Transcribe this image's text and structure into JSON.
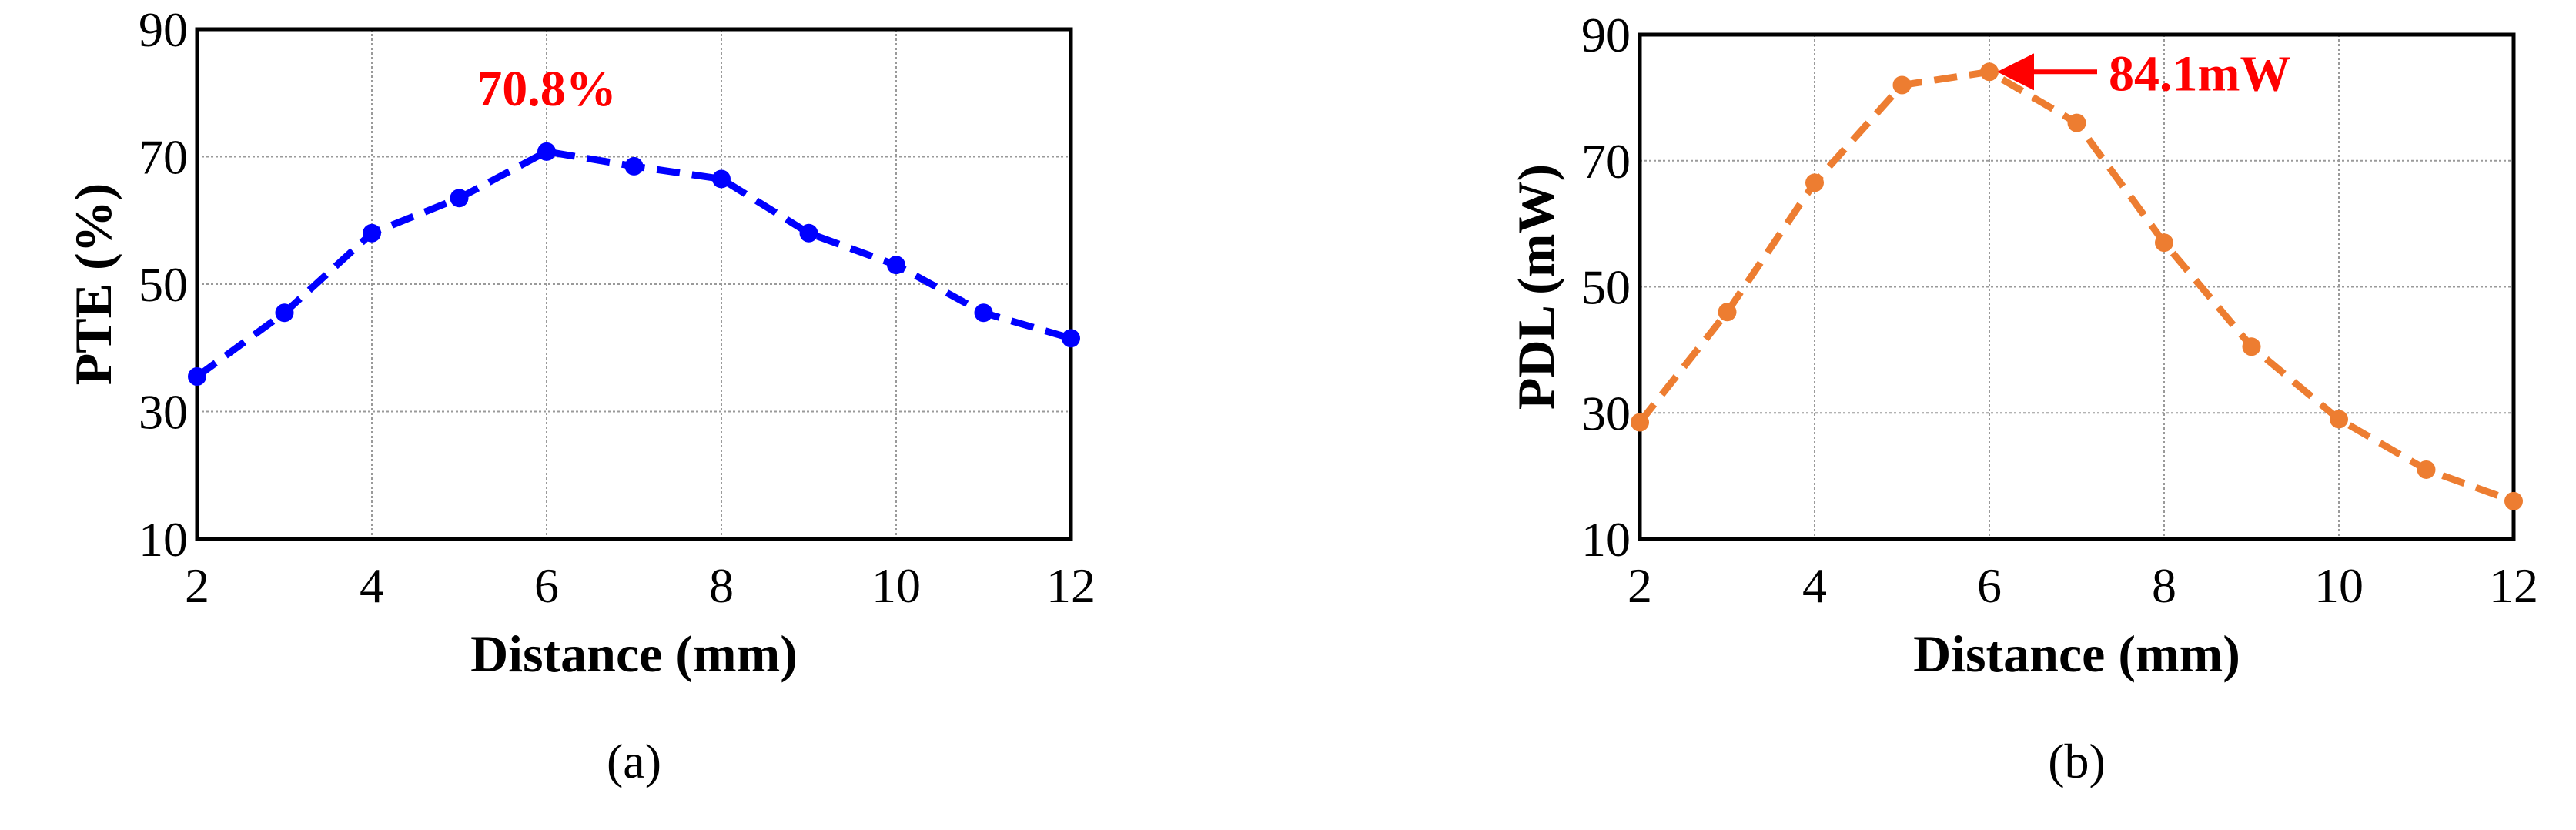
{
  "chart_data": [
    {
      "type": "line",
      "caption": "(a)",
      "x_label": "Distance (mm)",
      "y_label": "PTE (%)",
      "x": [
        2,
        3,
        4,
        5,
        6,
        7,
        8,
        9,
        10,
        11,
        12
      ],
      "series": [
        {
          "name": "PTE",
          "color": "#0000ff",
          "values": [
            35.5,
            45.5,
            58,
            63.5,
            70.8,
            68.5,
            66.5,
            58,
            53,
            45.5,
            41.5
          ]
        }
      ],
      "xlim": [
        2,
        12
      ],
      "xticks": [
        2,
        4,
        6,
        8,
        10,
        12
      ],
      "ylim": [
        10,
        90
      ],
      "yticks": [
        10,
        30,
        50,
        70,
        90
      ],
      "grid": true,
      "annotation": "70.8%"
    },
    {
      "type": "line",
      "caption": "(b)",
      "x_label": "Distance (mm)",
      "y_label": "PDL (mW)",
      "x": [
        2,
        3,
        4,
        5,
        6,
        7,
        8,
        9,
        10,
        11,
        12
      ],
      "series": [
        {
          "name": "PDL",
          "color": "#ed7d31",
          "values": [
            28.5,
            46,
            66.5,
            82,
            84.1,
            76,
            57,
            40.5,
            29,
            21,
            16
          ]
        }
      ],
      "xlim": [
        2,
        12
      ],
      "xticks": [
        2,
        4,
        6,
        8,
        10,
        12
      ],
      "ylim": [
        10,
        90
      ],
      "yticks": [
        10,
        30,
        50,
        70,
        90
      ],
      "grid": true,
      "annotation": "84.1mW"
    }
  ]
}
